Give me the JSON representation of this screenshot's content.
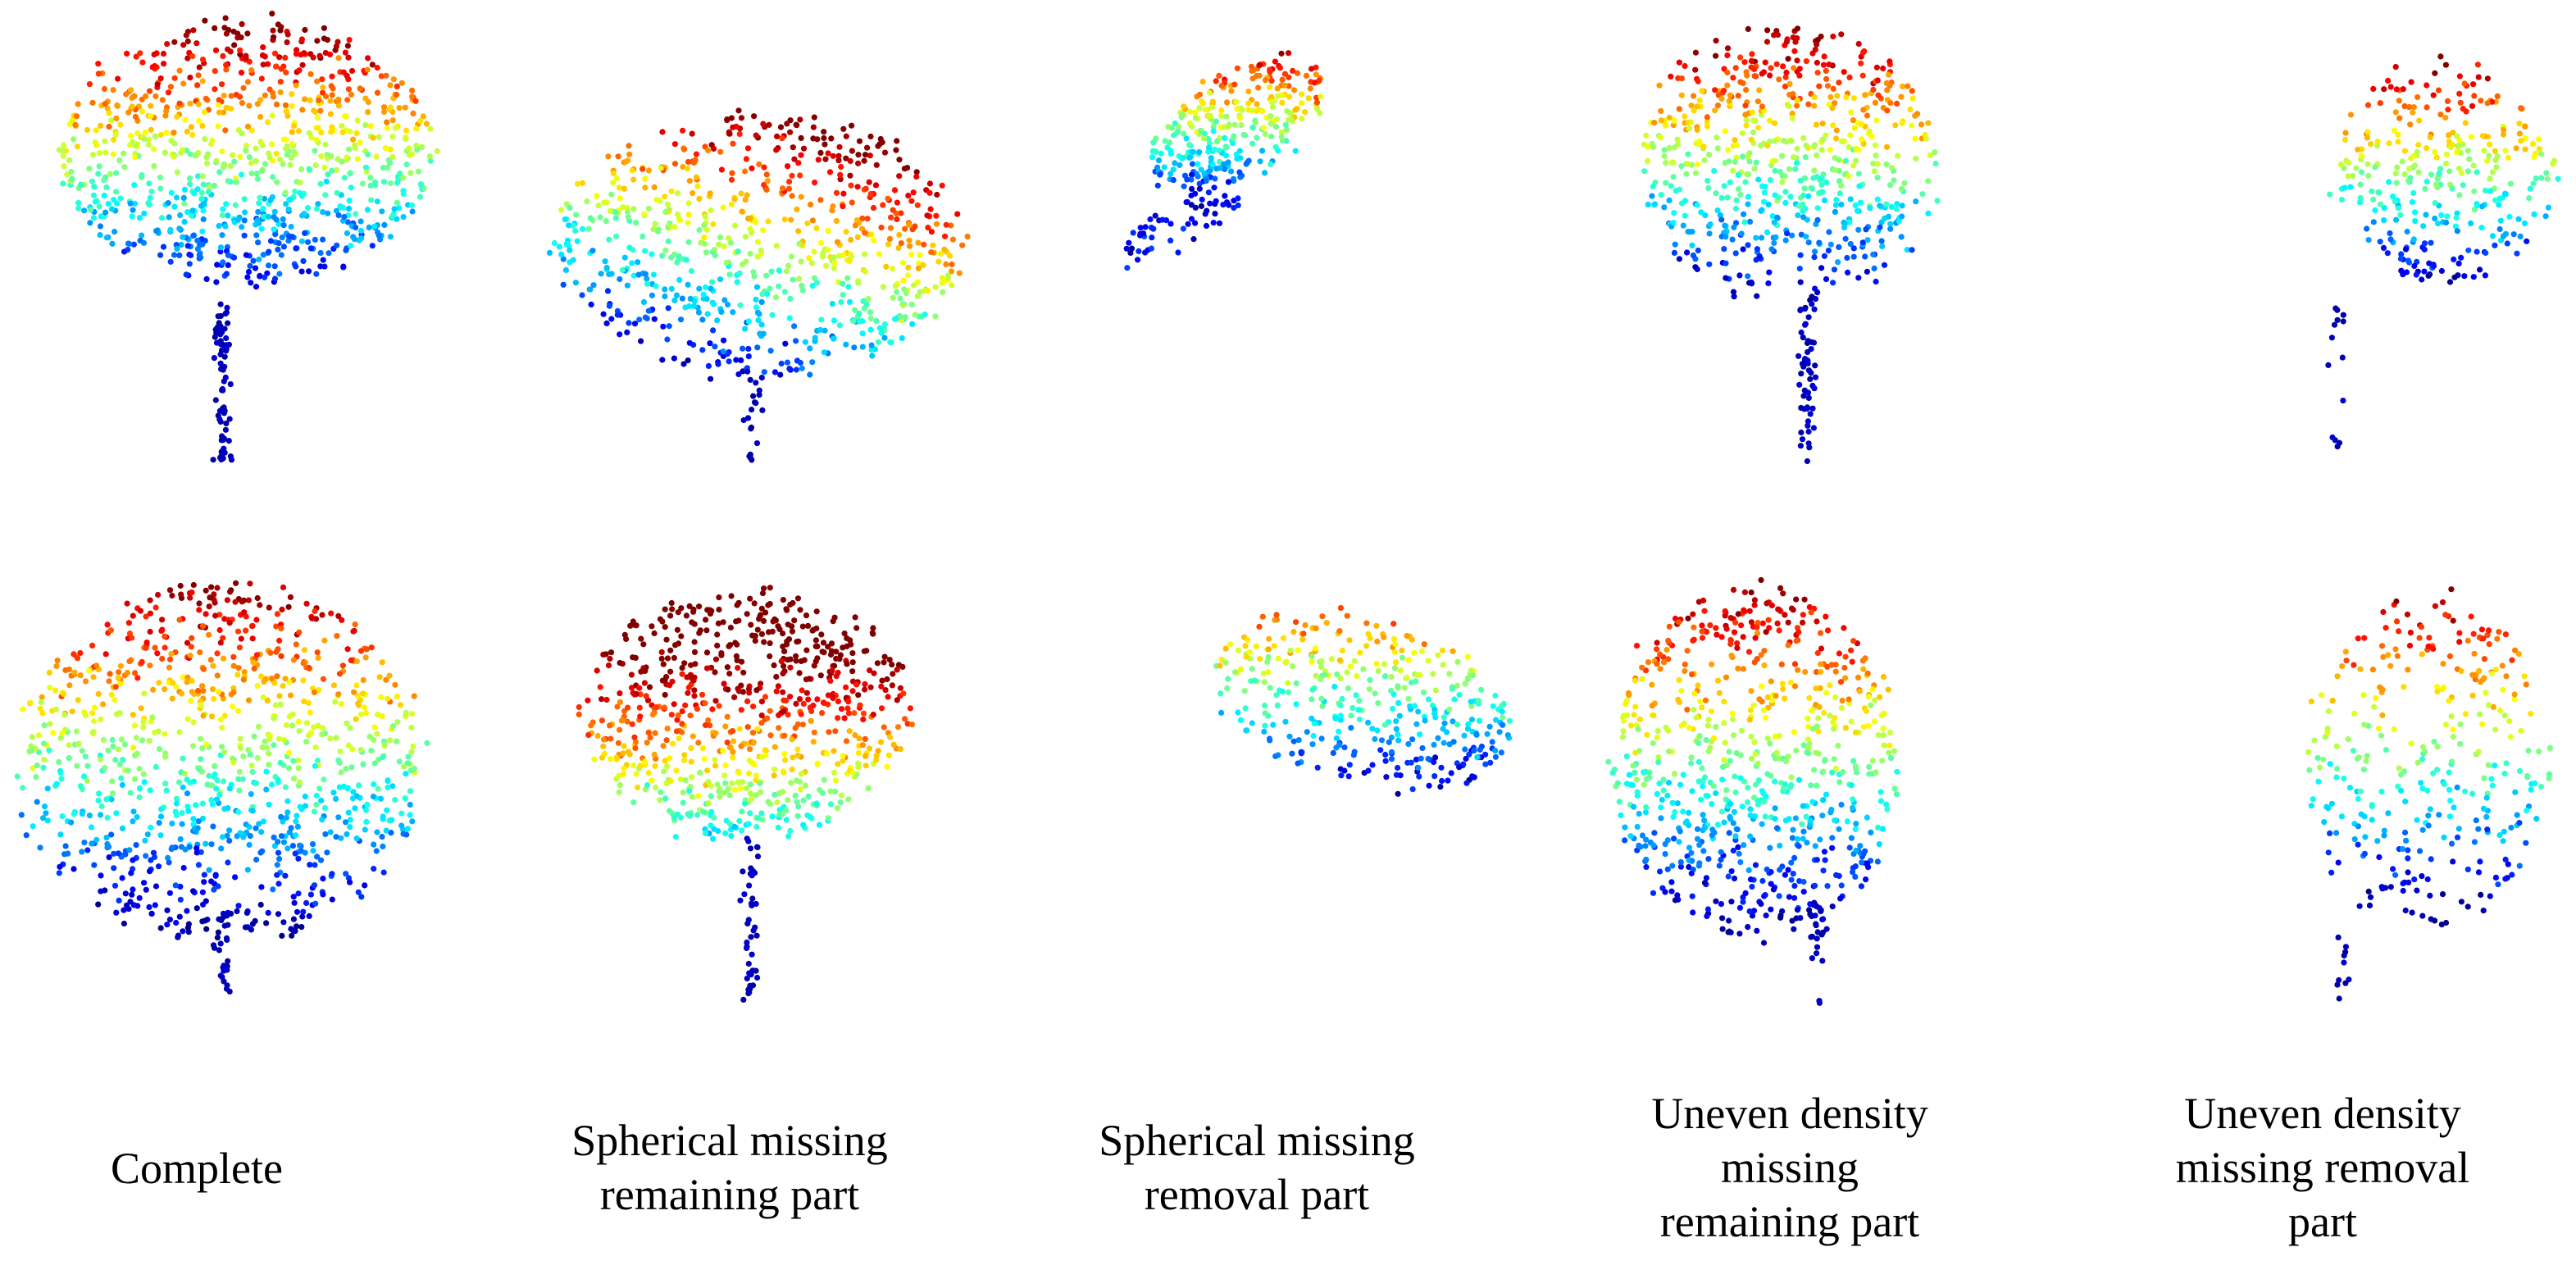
{
  "figure": {
    "colormap": [
      "#00008f",
      "#0000ff",
      "#0080ff",
      "#00ffff",
      "#80ff80",
      "#ffff00",
      "#ff8000",
      "#ff0000",
      "#800000"
    ],
    "columns": [
      {
        "caption_lines": [
          "Complete"
        ]
      },
      {
        "caption_lines": [
          "Spherical missing",
          "remaining part"
        ]
      },
      {
        "caption_lines": [
          "Spherical missing",
          "removal part"
        ]
      },
      {
        "caption_lines": [
          "Uneven density",
          "missing",
          "remaining part"
        ]
      },
      {
        "caption_lines": [
          "Uneven density",
          "missing removal",
          "part"
        ]
      }
    ]
  }
}
